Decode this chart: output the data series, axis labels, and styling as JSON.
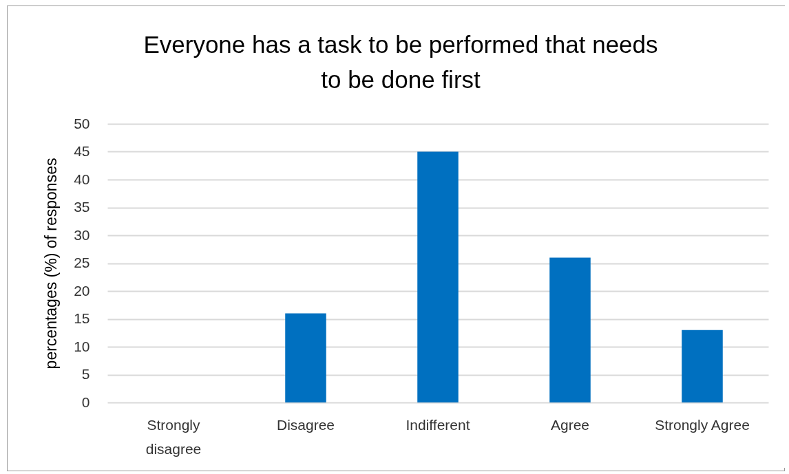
{
  "chart_data": {
    "type": "bar",
    "title": "Everyone has a task to be performed that needs to be done first",
    "ylabel": "percentages  (%) of responses",
    "categories": [
      "Strongly disagree",
      "Disagree",
      "Indifferent",
      "Agree",
      "Strongly Agree"
    ],
    "values": [
      0,
      16,
      45,
      26,
      13
    ],
    "color": "#0070c0",
    "ylim": [
      0,
      50
    ],
    "yticks": [
      0,
      5,
      10,
      15,
      20,
      25,
      30,
      35,
      40,
      45,
      50
    ],
    "grid": "y"
  }
}
